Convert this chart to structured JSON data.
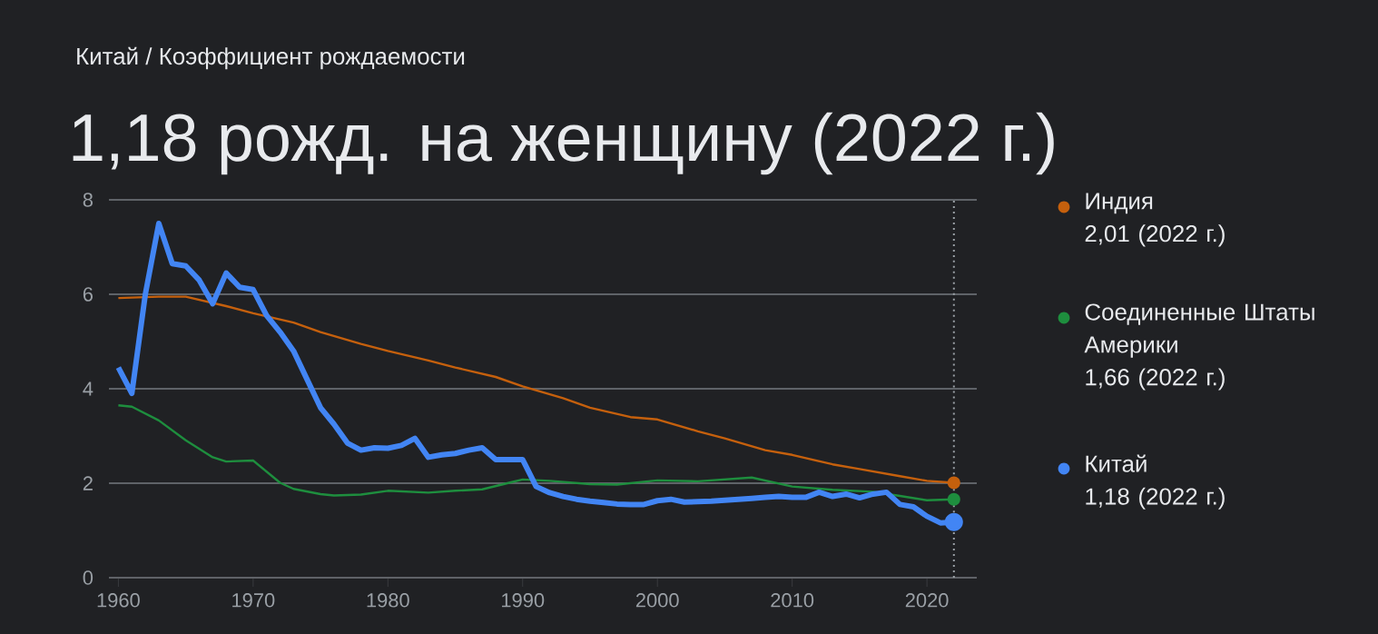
{
  "chart_data": {
    "type": "line",
    "subtitle": "Китай / Коэффициент рождаемости",
    "title": "1,18 рожд. на женщину (2022 г.)",
    "xlim": [
      1959.3,
      2023.7
    ],
    "xticks": [
      1960,
      1970,
      1980,
      1990,
      2000,
      2010,
      2020
    ],
    "ylim": [
      0,
      8
    ],
    "yticks": [
      0,
      2,
      4,
      6,
      8
    ],
    "grid": "y",
    "legend": "right",
    "ref_lines": [
      {
        "axis": "x",
        "value": 2022,
        "color": "#9aa0a6",
        "line_style": "dotted"
      }
    ],
    "series": [
      {
        "name": "Индия",
        "color": "#c5600d",
        "x": [
          1960,
          1963,
          1965,
          1968,
          1970,
          1973,
          1975,
          1978,
          1980,
          1983,
          1985,
          1988,
          1990,
          1993,
          1995,
          1998,
          2000,
          2003,
          2005,
          2008,
          2010,
          2013,
          2015,
          2018,
          2020,
          2022
        ],
        "values": [
          5.92,
          5.95,
          5.95,
          5.75,
          5.6,
          5.4,
          5.2,
          4.95,
          4.8,
          4.6,
          4.45,
          4.25,
          4.05,
          3.8,
          3.6,
          3.4,
          3.35,
          3.1,
          2.95,
          2.7,
          2.6,
          2.4,
          2.3,
          2.15,
          2.05,
          2.01
        ]
      },
      {
        "name": "Соединенные Штаты Америки",
        "color": "#1e8e3e",
        "x": [
          1960,
          1961,
          1963,
          1965,
          1967,
          1968,
          1970,
          1972,
          1973,
          1975,
          1976,
          1978,
          1980,
          1983,
          1985,
          1987,
          1989,
          1990,
          1992,
          1995,
          1997,
          2000,
          2003,
          2007,
          2010,
          2013,
          2016,
          2018,
          2020,
          2022
        ],
        "values": [
          3.65,
          3.62,
          3.33,
          2.91,
          2.55,
          2.46,
          2.48,
          2.01,
          1.88,
          1.77,
          1.74,
          1.76,
          1.84,
          1.8,
          1.84,
          1.87,
          2.01,
          2.08,
          2.05,
          1.98,
          1.97,
          2.06,
          2.04,
          2.12,
          1.93,
          1.86,
          1.82,
          1.73,
          1.64,
          1.66
        ]
      },
      {
        "name": "Китай",
        "color": "#4285f4",
        "x": [
          1960,
          1961,
          1962,
          1963,
          1964,
          1965,
          1966,
          1967,
          1968,
          1969,
          1970,
          1971,
          1972,
          1973,
          1974,
          1975,
          1976,
          1977,
          1978,
          1979,
          1980,
          1981,
          1982,
          1983,
          1984,
          1985,
          1986,
          1987,
          1988,
          1989,
          1990,
          1991,
          1992,
          1993,
          1994,
          1995,
          1996,
          1997,
          1998,
          1999,
          2000,
          2001,
          2002,
          2003,
          2004,
          2005,
          2006,
          2007,
          2008,
          2009,
          2010,
          2011,
          2012,
          2013,
          2014,
          2015,
          2016,
          2017,
          2018,
          2019,
          2020,
          2021,
          2022
        ],
        "values": [
          4.45,
          3.9,
          6.0,
          7.5,
          6.65,
          6.6,
          6.3,
          5.8,
          6.45,
          6.15,
          6.1,
          5.55,
          5.2,
          4.8,
          4.2,
          3.6,
          3.25,
          2.85,
          2.7,
          2.75,
          2.74,
          2.8,
          2.95,
          2.55,
          2.6,
          2.63,
          2.7,
          2.75,
          2.5,
          2.5,
          2.5,
          1.93,
          1.8,
          1.72,
          1.66,
          1.62,
          1.59,
          1.56,
          1.55,
          1.55,
          1.63,
          1.66,
          1.6,
          1.61,
          1.62,
          1.64,
          1.66,
          1.68,
          1.7,
          1.72,
          1.7,
          1.7,
          1.81,
          1.72,
          1.77,
          1.69,
          1.77,
          1.81,
          1.55,
          1.5,
          1.3,
          1.16,
          1.18
        ]
      }
    ],
    "annotations": [
      "2,01 (2022 г.)",
      "1,66 (2022 г.)",
      "1,18 (2022 г.)"
    ]
  }
}
